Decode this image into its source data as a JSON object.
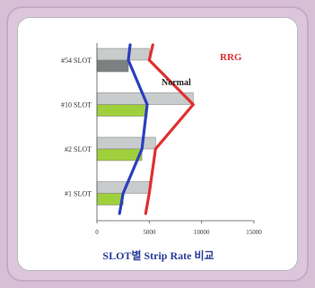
{
  "chart_data": {
    "type": "bar",
    "orientation": "horizontal",
    "categories": [
      "#1 SLOT",
      "#2 SLOT",
      "#10 SLOT",
      "#54 SLOT"
    ],
    "series": [
      {
        "name": "",
        "color": "#c9cccc",
        "values": [
          5000,
          5600,
          9200,
          5000
        ]
      },
      {
        "name": "",
        "color": "#9fd03c",
        "values": [
          2500,
          4300,
          4800,
          3000
        ]
      }
    ],
    "lines": [
      {
        "name": "RRG",
        "color": "#e03030",
        "values": [
          5000,
          5600,
          9200,
          5000
        ]
      },
      {
        "name": "Normal",
        "color": "#2a3fbf",
        "values": [
          2500,
          4300,
          4800,
          3000
        ]
      }
    ],
    "xticks": [
      "0",
      "5000",
      "10000",
      "15000"
    ],
    "xlim": [
      0,
      15000
    ],
    "title": "SLOT별 Strip Rate 비교"
  },
  "colors": {
    "frame": "#dcc6dc",
    "caption": "#2a3d9a"
  }
}
